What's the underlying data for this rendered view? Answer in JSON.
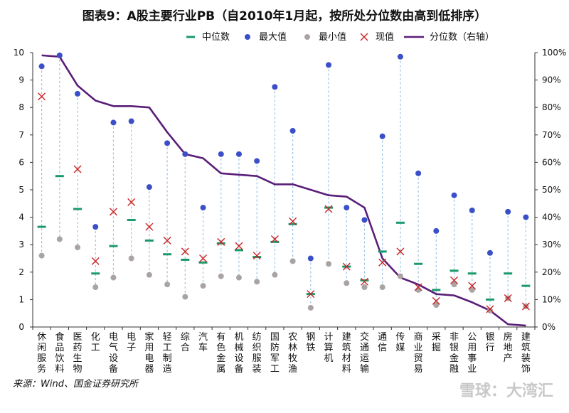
{
  "page": {
    "title": "图表9：A股主要行业PB（自2010年1月起，按所处分位数由高到低排序）"
  },
  "chart_data": {
    "type": "scatter+line",
    "title": "图表9：A股主要行业PB（自2010年1月起，按所处分位数由高到低排序）",
    "source": "来源：Wind、国金证券研究所",
    "watermark": "雪球：大湾汇",
    "categories": [
      "休闲服务",
      "食品饮料",
      "医药生物",
      "化工",
      "电气设备",
      "电子",
      "家用电器",
      "轻工制造",
      "综合",
      "汽车",
      "有色金属",
      "机械设备",
      "纺织服装",
      "国防军工",
      "农林牧渔",
      "钢铁",
      "计算机",
      "建筑材料",
      "交通运输",
      "通信",
      "传媒",
      "商业贸易",
      "采掘",
      "非银金融",
      "公用事业",
      "银行",
      "房地产",
      "建筑装饰"
    ],
    "left_axis": {
      "min": 0,
      "max": 10,
      "ticks": [
        "0",
        "1",
        "2",
        "3",
        "4",
        "5",
        "6",
        "7",
        "8",
        "9",
        "10"
      ]
    },
    "right_axis": {
      "min": 0,
      "max": 100,
      "ticks": [
        "0%",
        "10%",
        "20%",
        "30%",
        "40%",
        "50%",
        "60%",
        "70%",
        "80%",
        "90%",
        "100%"
      ]
    },
    "legend_position": "top",
    "series": [
      {
        "name": "中位数",
        "marker": "dash",
        "color": "#1a9a6a",
        "values": [
          3.65,
          5.5,
          4.3,
          1.95,
          2.95,
          3.9,
          3.15,
          2.65,
          2.45,
          2.35,
          3.05,
          2.8,
          2.55,
          3.1,
          3.75,
          1.2,
          4.35,
          2.2,
          1.7,
          2.75,
          3.8,
          2.3,
          1.35,
          2.05,
          1.95,
          1.0,
          1.95,
          1.5
        ]
      },
      {
        "name": "最大值",
        "marker": "circle",
        "color": "#3a4fc8",
        "values": [
          9.5,
          9.9,
          8.5,
          3.65,
          7.45,
          7.5,
          5.1,
          6.7,
          6.3,
          4.35,
          6.3,
          6.3,
          6.05,
          8.75,
          7.15,
          2.5,
          9.55,
          4.35,
          3.9,
          6.95,
          9.85,
          5.6,
          3.5,
          4.8,
          4.25,
          2.7,
          4.2,
          4.0
        ]
      },
      {
        "name": "最小值",
        "marker": "circle",
        "color": "#a9a3a3",
        "values": [
          2.6,
          3.2,
          2.9,
          1.45,
          1.8,
          2.5,
          1.9,
          1.55,
          1.1,
          1.5,
          1.85,
          1.8,
          1.65,
          1.9,
          2.4,
          0.7,
          2.3,
          1.6,
          1.45,
          1.45,
          1.85,
          1.35,
          0.8,
          1.55,
          1.35,
          0.6,
          1.05,
          0.75
        ]
      },
      {
        "name": "现值",
        "marker": "cross",
        "color": "#cc2222",
        "values": [
          8.4,
          null,
          5.75,
          2.4,
          4.2,
          4.55,
          3.65,
          3.15,
          2.75,
          2.5,
          3.1,
          2.95,
          2.6,
          3.2,
          3.85,
          1.2,
          4.3,
          2.2,
          1.65,
          2.35,
          2.75,
          1.45,
          0.95,
          1.7,
          1.5,
          0.65,
          1.05,
          0.75
        ]
      },
      {
        "name": "分位数（右轴）",
        "marker": "line",
        "color": "#5a1e78",
        "axis": "right",
        "values": [
          99,
          98.5,
          88,
          82.5,
          80.5,
          80.5,
          80,
          71,
          63,
          61.5,
          56,
          55.5,
          55,
          52,
          52,
          50,
          48,
          47.5,
          43.5,
          25,
          18,
          15.5,
          12,
          11.5,
          9,
          6,
          1,
          0.5
        ]
      }
    ]
  }
}
